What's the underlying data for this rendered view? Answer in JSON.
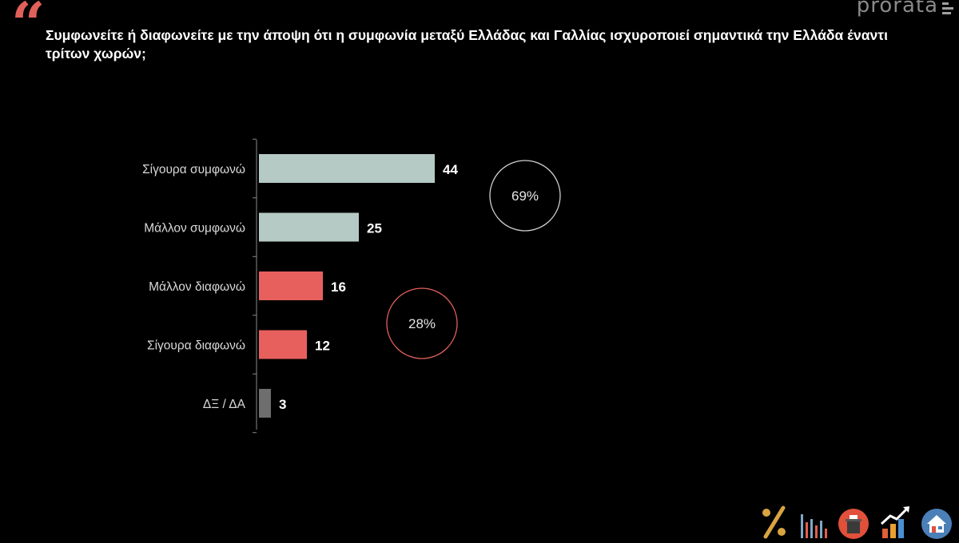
{
  "header": {
    "quote_symbol": "“",
    "question": "Συμφωνείτε ή διαφωνείτε με την άποψη ότι η συμφωνία μεταξύ Ελλάδας και Γαλλίας ισχυροποιεί σημαντικά την Ελλάδα έναντι τρίτων χωρών;",
    "brand": "prorata"
  },
  "colors": {
    "agree": "#b5cac4",
    "disagree": "#e8605e",
    "unknown": "#6e6e6e",
    "agree_circle": "#cfcfcf",
    "disagree_circle": "#e0605a"
  },
  "chart_data": {
    "type": "bar",
    "orientation": "horizontal",
    "title": "Συμφωνείτε ή διαφωνείτε με την άποψη ότι η συμφωνία μεταξύ Ελλάδας και Γαλλίας ισχυροποιεί σημαντικά την Ελλάδα έναντι τρίτων χωρών;",
    "categories": [
      "Σίγουρα συμφωνώ",
      "Μάλλον συμφωνώ",
      "Μάλλον διαφωνώ",
      "Σίγουρα διαφωνώ",
      "ΔΞ / ΔΑ"
    ],
    "values": [
      44,
      25,
      16,
      12,
      3
    ],
    "groups": [
      "agree",
      "agree",
      "disagree",
      "disagree",
      "unknown"
    ],
    "xlim": [
      0,
      100
    ],
    "xlabel": "",
    "ylabel": "",
    "grid": false,
    "annotations": [
      {
        "label": "69%",
        "group": "agree"
      },
      {
        "label": "28%",
        "group": "disagree"
      }
    ]
  },
  "footer": {
    "icons": [
      "percent-icon",
      "bar-chart-icon",
      "ballot-box-icon",
      "trend-up-icon",
      "house-icon"
    ]
  }
}
